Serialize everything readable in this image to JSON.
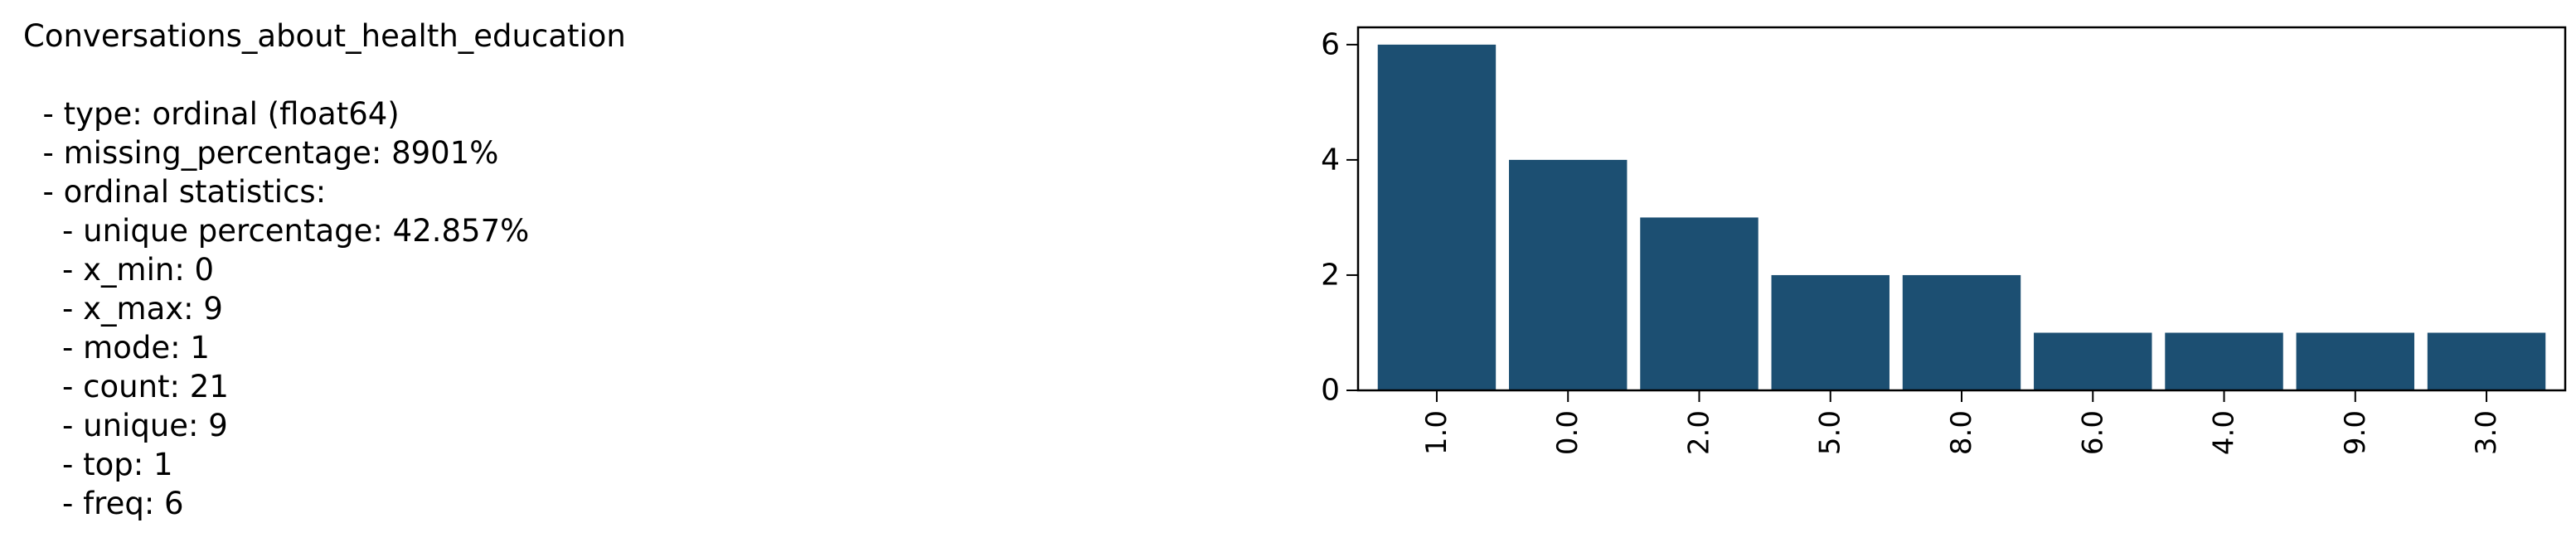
{
  "summary": {
    "lines": [
      "Conversations_about_health_education",
      "",
      "  - type: ordinal (float64)",
      "  - missing_percentage: 8901%",
      "  - ordinal statistics:",
      "    - unique percentage: 42.857%",
      "    - x_min: 0",
      "    - x_max: 9",
      "    - mode: 1",
      "    - count: 21",
      "    - unique: 9",
      "    - top: 1",
      "    - freq: 6"
    ]
  },
  "chart_data": {
    "type": "bar",
    "categories": [
      "1.0",
      "0.0",
      "2.0",
      "5.0",
      "8.0",
      "6.0",
      "4.0",
      "9.0",
      "3.0"
    ],
    "values": [
      6,
      4,
      3,
      2,
      2,
      1,
      1,
      1,
      1
    ],
    "yticks": [
      "0",
      "2",
      "4",
      "6"
    ],
    "ylim": [
      0,
      6.3
    ],
    "bar_color": "#1c4f72",
    "grid": false,
    "legend": "none",
    "title": "",
    "xlabel": "",
    "ylabel": ""
  }
}
